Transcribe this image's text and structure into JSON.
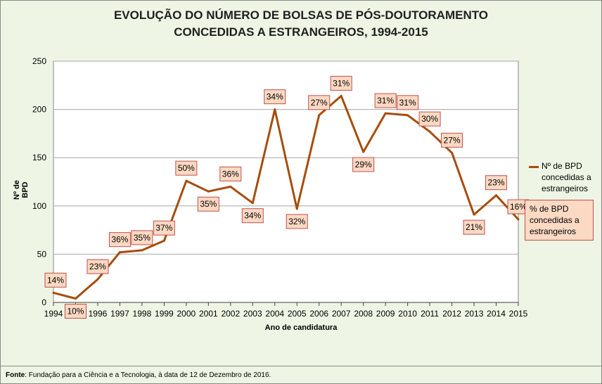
{
  "title_line1": "EVOLUÇÃO DO NÚMERO DE BOLSAS DE PÓS-DOUTORAMENTO",
  "title_line2": "CONCEDIDAS A ESTRANGEIROS, 1994-2015",
  "source_label": "Fonte",
  "source_text": ": Fundação para a Ciência e a Tecnologia, à data de 12 de Dezembro de 2016.",
  "colors": {
    "line": "#a64d0c",
    "label_fill": "#fbd9c3",
    "label_border": "#c0504d",
    "plot_bg": "#ffffff",
    "chart_bg": "#eef5e4",
    "grid": "#a6a6a6"
  },
  "chart_data": {
    "type": "line",
    "title": "EVOLUÇÃO DO NÚMERO DE BOLSAS DE PÓS-DOUTORAMENTO CONCEDIDAS A ESTRANGEIROS, 1994-2015",
    "xlabel": "Ano de candidatura",
    "ylabel": "Nº de BPD",
    "ylim": [
      0,
      250
    ],
    "yticks": [
      "0",
      "50",
      "100",
      "150",
      "200",
      "250"
    ],
    "grid": true,
    "legend_position": "right",
    "categories": [
      "1994",
      "1995",
      "1996",
      "1997",
      "1998",
      "1999",
      "2000",
      "2001",
      "2002",
      "2003",
      "2004",
      "2005",
      "2006",
      "2007",
      "2008",
      "2009",
      "2010",
      "2011",
      "2012",
      "2013",
      "2014",
      "2015"
    ],
    "series": [
      {
        "name": "Nº de BPD concedidas a estrangeiros",
        "values": [
          10,
          4,
          24,
          52,
          54,
          64,
          126,
          115,
          120,
          103,
          200,
          97,
          194,
          214,
          156,
          196,
          194,
          177,
          155,
          91,
          111,
          86
        ]
      }
    ],
    "data_labels": {
      "name": "% de BPD concedidas a estrangeiros",
      "labels": [
        "14%",
        "10%",
        "23%",
        "36%",
        "35%",
        "37%",
        "50%",
        "35%",
        "36%",
        "34%",
        "34%",
        "32%",
        "27%",
        "31%",
        "29%",
        "31%",
        "31%",
        "30%",
        "27%",
        "21%",
        "23%",
        "16%"
      ]
    }
  }
}
